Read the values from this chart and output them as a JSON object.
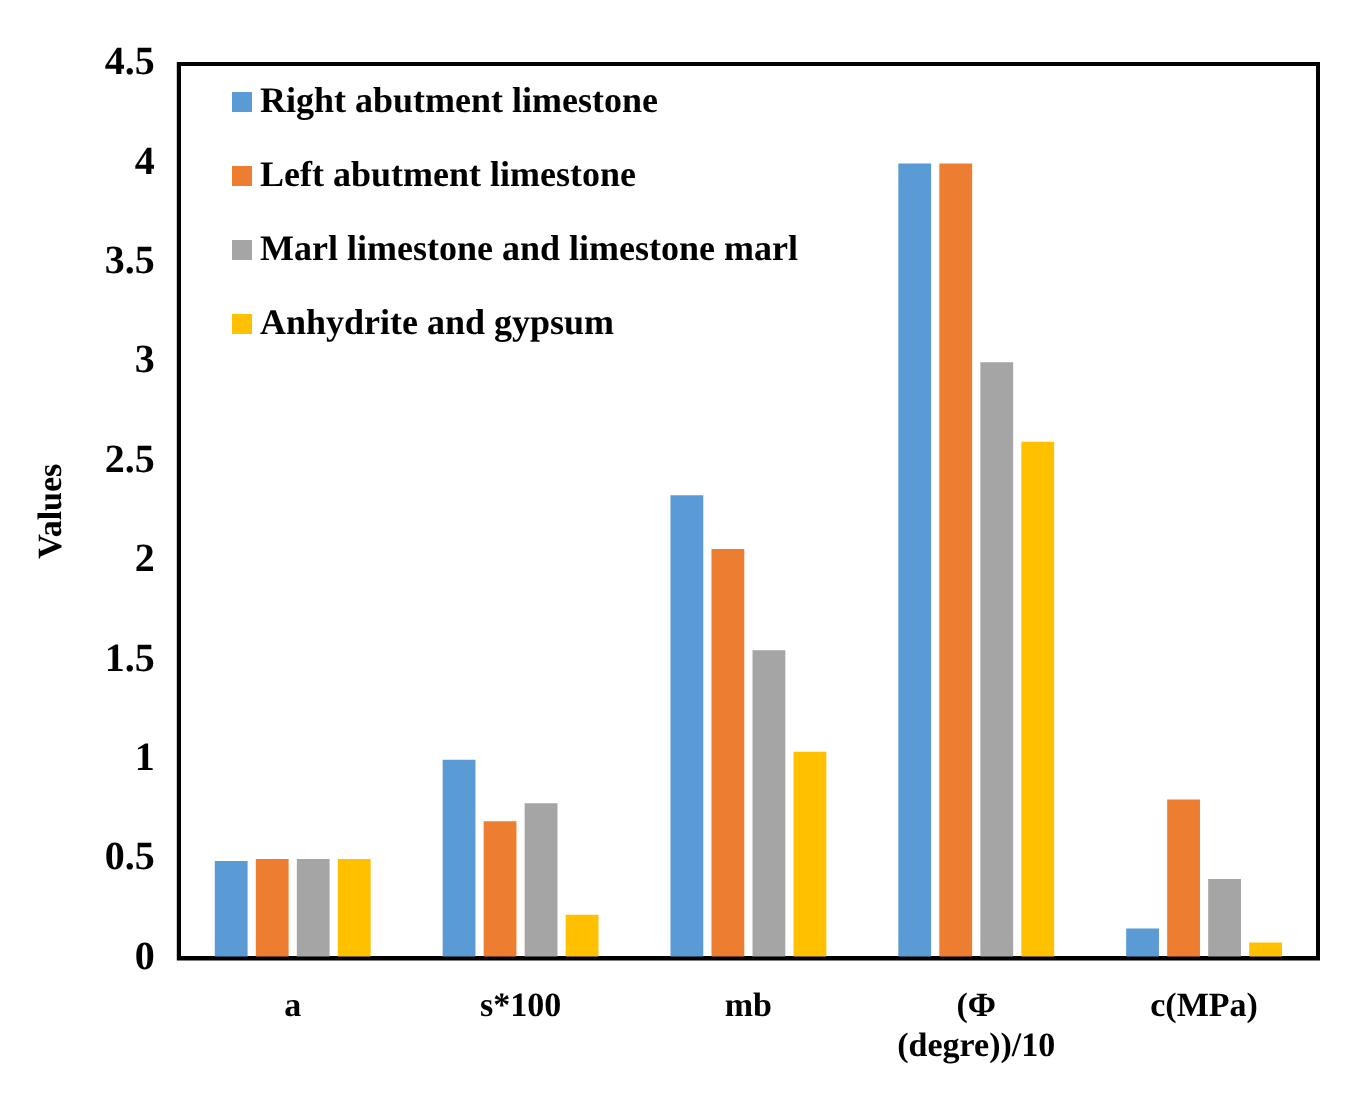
{
  "chart_data": {
    "type": "bar",
    "ylabel": "Values",
    "categories": [
      "a",
      "s*100",
      "mb",
      "(Φ (degre))/10",
      "c(MPa)"
    ],
    "series": [
      {
        "name": "Right abutment limestone",
        "color": "#5b9bd5",
        "values": [
          0.49,
          1.0,
          2.33,
          4.0,
          0.15
        ]
      },
      {
        "name": "Left abutment limestone",
        "color": "#ed7d31",
        "values": [
          0.5,
          0.69,
          2.06,
          4.0,
          0.8
        ]
      },
      {
        "name": "Marl limestone and limestone marl",
        "color": "#a5a5a5",
        "values": [
          0.5,
          0.78,
          1.55,
          3.0,
          0.4
        ]
      },
      {
        "name": "Anhydrite and gypsum",
        "color": "#ffc000",
        "values": [
          0.5,
          0.22,
          1.04,
          2.6,
          0.08
        ]
      }
    ],
    "ylim": [
      0,
      4.5
    ],
    "yticks": [
      0,
      0.5,
      1,
      1.5,
      2,
      2.5,
      3,
      3.5,
      4,
      4.5
    ],
    "grid": false,
    "legend": "top left"
  }
}
